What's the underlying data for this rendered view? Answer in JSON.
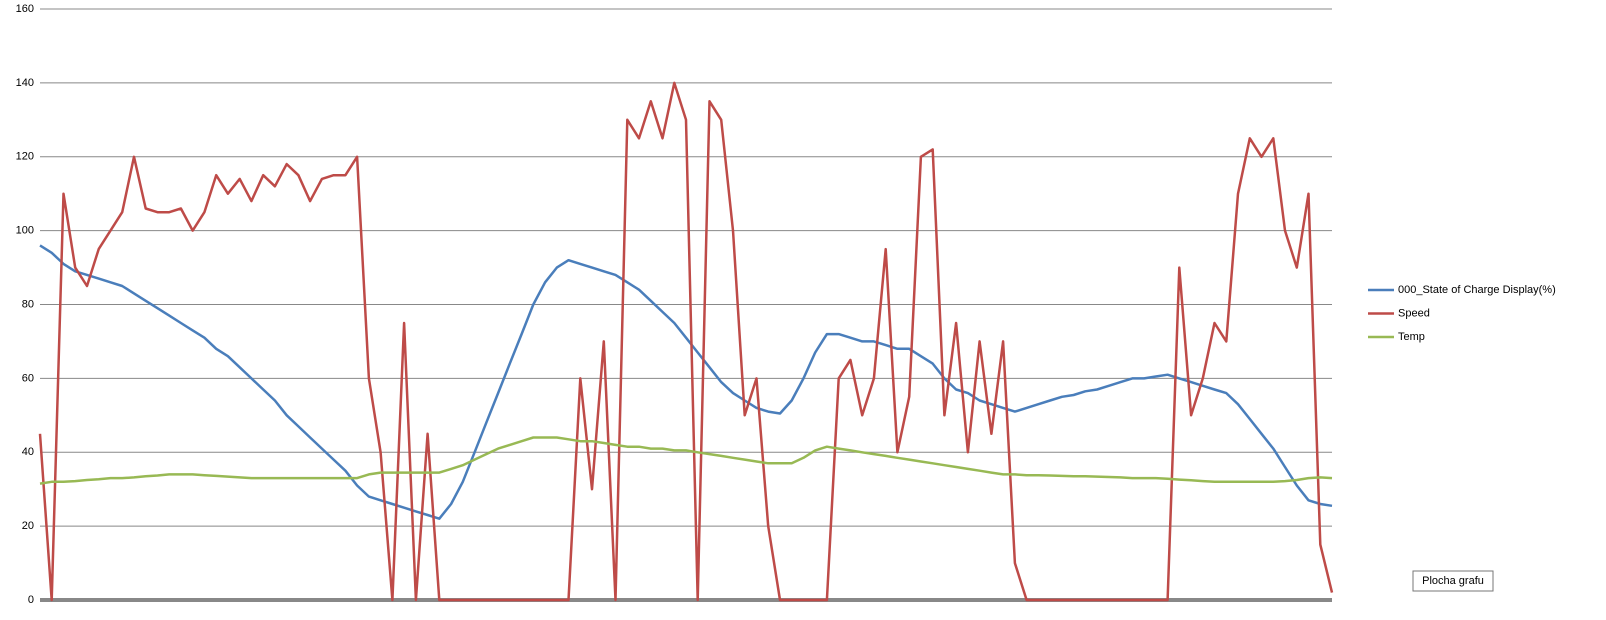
{
  "chart_data": {
    "type": "line",
    "ylim": [
      0,
      160
    ],
    "yticks": [
      0,
      20,
      40,
      60,
      80,
      100,
      120,
      140,
      160
    ],
    "grid": true,
    "legend": "right",
    "series": [
      {
        "name": "000_State of Charge Display(%)",
        "color": "#4a7ebb",
        "values": [
          96,
          94,
          91,
          89,
          88,
          87,
          86,
          85,
          83,
          81,
          79,
          77,
          75,
          73,
          71,
          68,
          66,
          63,
          60,
          57,
          54,
          50,
          47,
          44,
          41,
          38,
          35,
          31,
          28,
          27,
          26,
          25,
          24,
          23,
          22,
          26,
          32,
          40,
          48,
          56,
          64,
          72,
          80,
          86,
          90,
          92,
          91,
          90,
          89,
          88,
          86,
          84,
          81,
          78,
          75,
          71,
          67,
          63,
          59,
          56,
          54,
          52,
          51,
          50.5,
          54,
          60,
          67,
          72,
          72,
          71,
          70,
          70,
          69,
          68,
          68,
          66,
          64,
          60,
          57,
          56,
          54,
          53,
          52,
          51,
          52,
          53,
          54,
          55,
          55.5,
          56.5,
          57,
          58,
          59,
          60,
          60,
          60.5,
          61,
          60,
          59,
          58,
          57,
          56,
          53,
          49,
          45,
          41,
          36,
          31,
          27,
          26,
          25.5
        ]
      },
      {
        "name": "Speed",
        "color": "#be4b48",
        "values": [
          45,
          0,
          110,
          90,
          85,
          95,
          100,
          105,
          120,
          106,
          105,
          105,
          106,
          100,
          105,
          115,
          110,
          114,
          108,
          115,
          112,
          118,
          115,
          108,
          114,
          115,
          115,
          120,
          60,
          40,
          0,
          75,
          0,
          45,
          0,
          0,
          0,
          0,
          0,
          0,
          0,
          0,
          0,
          0,
          0,
          0,
          60,
          30,
          70,
          0,
          130,
          125,
          135,
          125,
          140,
          130,
          0,
          135,
          130,
          100,
          50,
          60,
          20,
          0,
          0,
          0,
          0,
          0,
          60,
          65,
          50,
          60,
          95,
          40,
          55,
          120,
          122,
          50,
          75,
          40,
          70,
          45,
          70,
          10,
          0,
          0,
          0,
          0,
          0,
          0,
          0,
          0,
          0,
          0,
          0,
          0,
          0,
          90,
          50,
          60,
          75,
          70,
          110,
          125,
          120,
          125,
          100,
          90,
          110,
          15,
          2
        ]
      },
      {
        "name": "Temp",
        "color": "#98b954",
        "values": [
          31.5,
          32,
          32,
          32.2,
          32.5,
          32.7,
          33,
          33,
          33.2,
          33.5,
          33.7,
          34,
          34,
          34,
          33.8,
          33.6,
          33.4,
          33.2,
          33,
          33,
          33,
          33,
          33,
          33,
          33,
          33,
          33,
          33,
          34,
          34.5,
          34.5,
          34.5,
          34.5,
          34.5,
          34.5,
          35.5,
          36.5,
          38,
          39.5,
          41,
          42,
          43,
          44,
          44,
          44,
          43.5,
          43,
          43,
          42.5,
          42,
          41.5,
          41.5,
          41,
          41,
          40.5,
          40.5,
          40,
          39.5,
          39,
          38.5,
          38,
          37.5,
          37,
          37,
          37,
          38.5,
          40.5,
          41.5,
          41,
          40.5,
          40,
          39.5,
          39,
          38.5,
          38,
          37.5,
          37,
          36.5,
          36,
          35.5,
          35,
          34.5,
          34,
          34,
          33.8,
          33.8,
          33.7,
          33.6,
          33.5,
          33.5,
          33.4,
          33.3,
          33.2,
          33,
          33,
          33,
          32.8,
          32.6,
          32.4,
          32.2,
          32,
          32,
          32,
          32,
          32,
          32,
          32.2,
          32.5,
          33,
          33.2,
          33
        ]
      }
    ]
  },
  "tooltip": "Plocha grafu"
}
